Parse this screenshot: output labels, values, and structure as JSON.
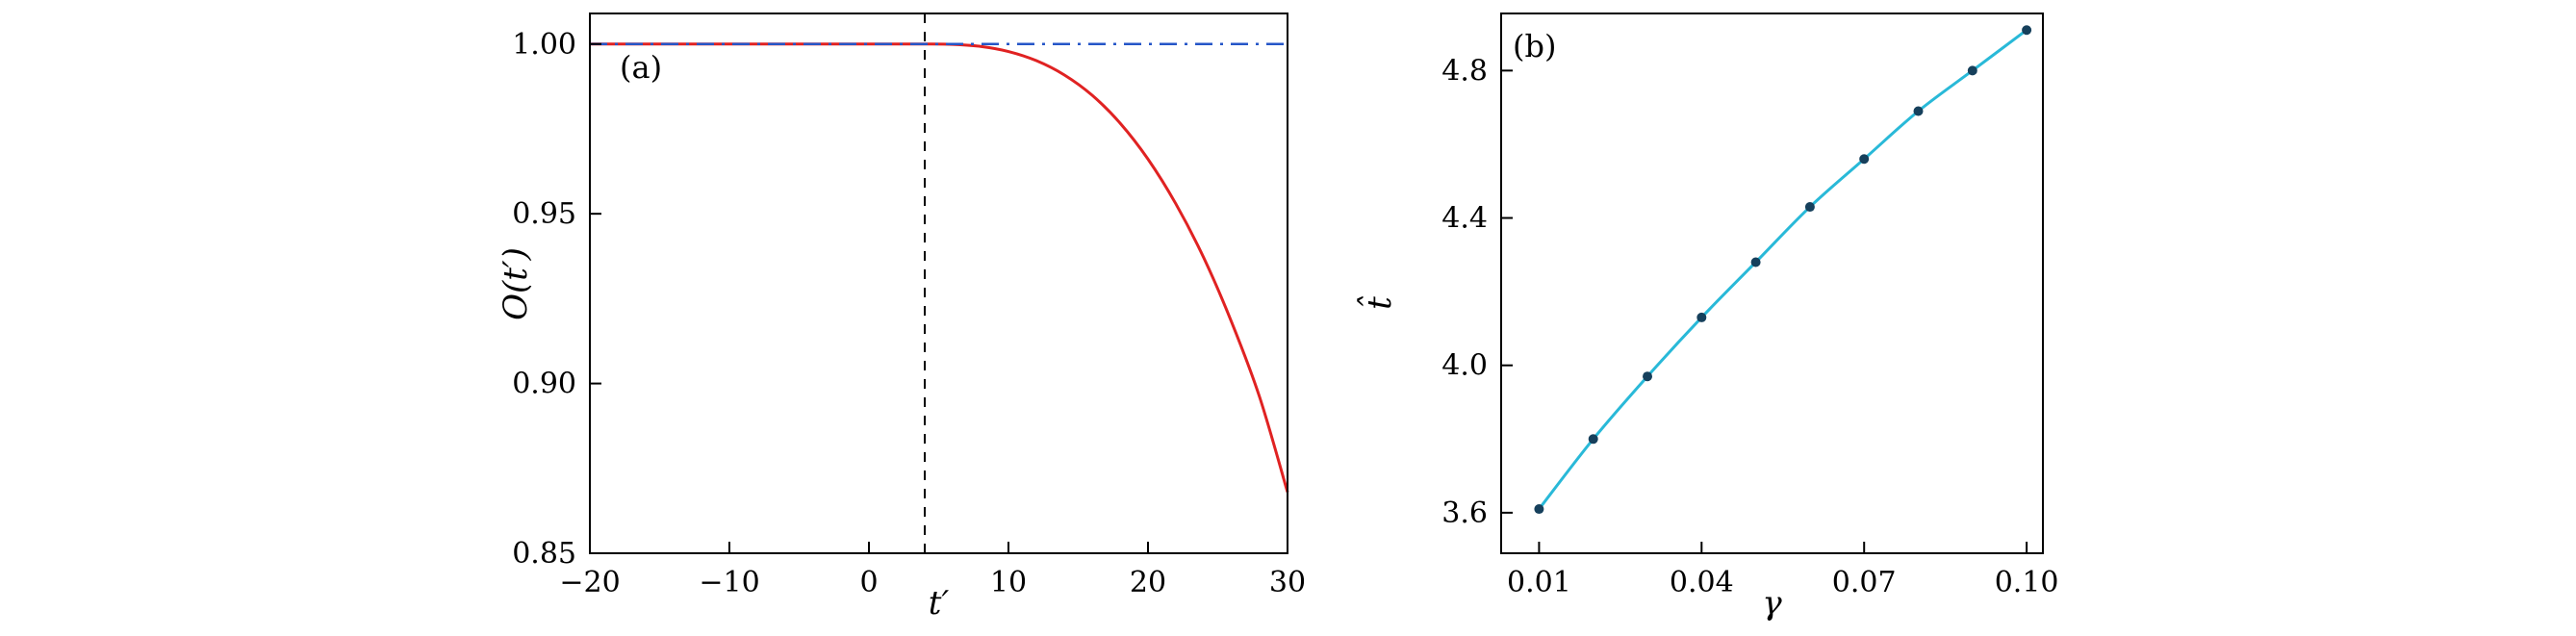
{
  "figure": {
    "background": "#ffffff",
    "frame_color": "#000000"
  },
  "chart_data": [
    {
      "id": "panel-a",
      "type": "line",
      "panel_label": "(a)",
      "xlabel": "t′",
      "ylabel": "O(t′)",
      "xlim": [
        -20,
        30
      ],
      "ylim": [
        0.85,
        1.009
      ],
      "xticks": [
        -20,
        -10,
        0,
        10,
        20,
        30
      ],
      "xtick_labels": [
        "−20",
        "−10",
        "0",
        "10",
        "20",
        "30"
      ],
      "yticks": [
        0.85,
        0.9,
        0.95,
        1.0
      ],
      "ytick_labels": [
        "0.85",
        "0.90",
        "0.95",
        "1.00"
      ],
      "grid": false,
      "legend": "none",
      "series": [
        {
          "name": "observable-decay-curve",
          "type": "line",
          "style": "solid",
          "color": "#e02222",
          "width": 3,
          "x": [
            -20,
            -15,
            -10,
            -5,
            0,
            2,
            4,
            6,
            8,
            10,
            12,
            14,
            16,
            18,
            20,
            22,
            24,
            26,
            28,
            30
          ],
          "y": [
            1.0,
            1.0,
            1.0,
            1.0,
            1.0,
            1.0,
            1.0,
            0.9999,
            0.9993,
            0.9978,
            0.9951,
            0.9909,
            0.9849,
            0.9767,
            0.9661,
            0.9529,
            0.937,
            0.918,
            0.896,
            0.868
          ]
        },
        {
          "name": "reference-dashdot-line",
          "type": "hline",
          "style": "dashdot",
          "color": "#2556c8",
          "width": 2.5,
          "y": 1.0
        },
        {
          "name": "quench-time-dashed-marker",
          "type": "vline",
          "style": "dashed",
          "color": "#000000",
          "width": 2,
          "x": 4
        }
      ]
    },
    {
      "id": "panel-b",
      "type": "line",
      "panel_label": "(b)",
      "xlabel": "γ",
      "ylabel": "t̂",
      "xlim": [
        0.003,
        0.103
      ],
      "ylim": [
        3.49,
        4.955
      ],
      "xticks": [
        0.01,
        0.04,
        0.07,
        0.1
      ],
      "xtick_labels": [
        "0.01",
        "0.04",
        "0.07",
        "0.10"
      ],
      "yticks": [
        3.6,
        4.0,
        4.4,
        4.8
      ],
      "ytick_labels": [
        "3.6",
        "4.0",
        "4.4",
        "4.8"
      ],
      "grid": false,
      "legend": "none",
      "series": [
        {
          "name": "optimal-time-curve",
          "type": "line",
          "style": "solid",
          "color": "#29b9d8",
          "width": 3,
          "x": [
            0.01,
            0.02,
            0.03,
            0.04,
            0.05,
            0.06,
            0.07,
            0.08,
            0.09,
            0.1
          ],
          "y": [
            3.61,
            3.8,
            3.97,
            4.13,
            4.28,
            4.43,
            4.56,
            4.69,
            4.8,
            4.91
          ]
        },
        {
          "name": "optimal-time-points",
          "type": "scatter",
          "color": "#16405c",
          "radius": 5,
          "x": [
            0.01,
            0.02,
            0.03,
            0.04,
            0.05,
            0.06,
            0.07,
            0.08,
            0.09,
            0.1
          ],
          "y": [
            3.61,
            3.8,
            3.97,
            4.13,
            4.28,
            4.43,
            4.56,
            4.69,
            4.8,
            4.91
          ]
        }
      ]
    }
  ]
}
